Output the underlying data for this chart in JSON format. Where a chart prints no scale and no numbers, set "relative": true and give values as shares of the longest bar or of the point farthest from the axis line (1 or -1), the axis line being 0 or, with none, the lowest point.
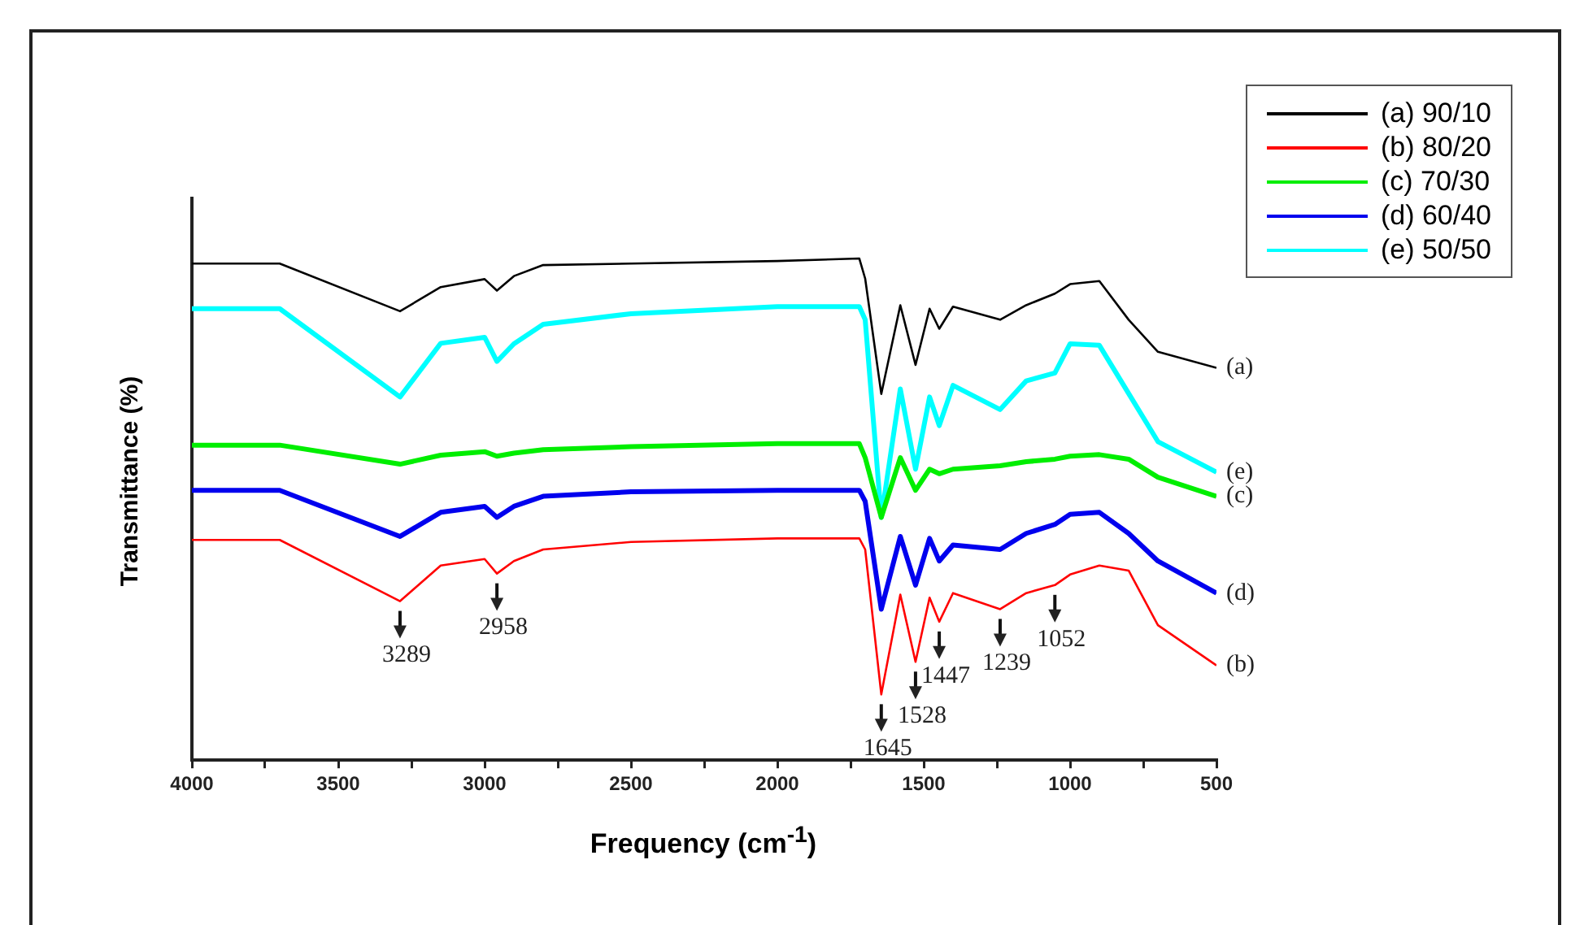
{
  "chart_data": {
    "type": "line",
    "relative": true,
    "xlabel": "Frequency (cm$^{-1}$)",
    "ylabel": "Transmittance (%)",
    "legend": "top right",
    "grid": false,
    "marker": "none",
    "line_style": "solid",
    "xlim": [
      4000,
      500
    ],
    "xticks": [
      4000,
      {
        "value": 3750,
        "label": null
      },
      3500,
      {
        "value": 3250,
        "label": null
      },
      3000,
      {
        "value": 2750,
        "label": null
      },
      2500,
      {
        "value": 2250,
        "label": null
      },
      2000,
      {
        "value": 1750,
        "label": null
      },
      1500,
      {
        "value": 1250,
        "label": null
      },
      1000,
      {
        "value": 750,
        "label": null
      },
      500
    ],
    "x": [
      4000,
      3700,
      3289,
      3150,
      3000,
      2958,
      2900,
      2800,
      2500,
      2000,
      1720,
      1700,
      1645,
      1580,
      1528,
      1480,
      1447,
      1400,
      1239,
      1150,
      1052,
      1000,
      900,
      800,
      700,
      500
    ],
    "series": [
      {
        "name": "(a) 90/10",
        "color": "#000000",
        "values": [
          0.99,
          0.99,
          0.895,
          0.943,
          0.959,
          0.936,
          0.965,
          0.987,
          0.99,
          0.995,
          1,
          0.96,
          0.73,
          0.907,
          0.788,
          0.9,
          0.86,
          0.904,
          0.878,
          0.907,
          0.93,
          0.949,
          0.955,
          0.878,
          0.814,
          0.782
        ]
      },
      {
        "name": "(b) 80/20",
        "color": "#ff0000",
        "values": [
          0.439,
          0.439,
          0.317,
          0.388,
          0.401,
          0.372,
          0.397,
          0.42,
          0.435,
          0.442,
          0.442,
          0.42,
          0.131,
          0.33,
          0.196,
          0.324,
          0.276,
          0.333,
          0.301,
          0.333,
          0.349,
          0.37,
          0.388,
          0.378,
          0.269,
          0.189
        ]
      },
      {
        "name": "(c) 70/30",
        "color": "#00ee00",
        "values": [
          0.628,
          0.628,
          0.59,
          0.608,
          0.615,
          0.606,
          0.612,
          0.619,
          0.625,
          0.631,
          0.631,
          0.603,
          0.484,
          0.603,
          0.538,
          0.58,
          0.571,
          0.58,
          0.587,
          0.595,
          0.6,
          0.606,
          0.609,
          0.6,
          0.564,
          0.526
        ]
      },
      {
        "name": "(d) 60/40",
        "color": "#0000ee",
        "values": [
          0.538,
          0.538,
          0.446,
          0.494,
          0.506,
          0.484,
          0.506,
          0.526,
          0.535,
          0.538,
          0.538,
          0.516,
          0.301,
          0.446,
          0.349,
          0.442,
          0.397,
          0.429,
          0.42,
          0.452,
          0.47,
          0.49,
          0.494,
          0.452,
          0.397,
          0.333
        ]
      },
      {
        "name": "(e) 50/50",
        "color": "#00ffff",
        "values": [
          0.9,
          0.9,
          0.724,
          0.831,
          0.843,
          0.795,
          0.83,
          0.869,
          0.89,
          0.904,
          0.904,
          0.878,
          0.484,
          0.74,
          0.58,
          0.724,
          0.667,
          0.747,
          0.699,
          0.756,
          0.772,
          0.83,
          0.827,
          0.731,
          0.635,
          0.574
        ]
      }
    ],
    "annotations": [
      {
        "text": "3289",
        "x": 3289,
        "y": 0.317
      },
      {
        "text": "2958",
        "x": 2958,
        "y": 0.372
      },
      {
        "text": "1645",
        "x": 1645,
        "y": 0.131
      },
      {
        "text": "1528",
        "x": 1528,
        "y": 0.196
      },
      {
        "text": "1447",
        "x": 1447,
        "y": 0.276
      },
      {
        "text": "1239",
        "x": 1239,
        "y": 0.301
      },
      {
        "text": "1052",
        "x": 1052,
        "y": 0.349
      },
      {
        "text": "(a)",
        "x": 500,
        "y": 0.782
      },
      {
        "text": "(e)",
        "x": 500,
        "y": 0.574
      },
      {
        "text": "(c)",
        "x": 500,
        "y": 0.526
      },
      {
        "text": "(d)",
        "x": 500,
        "y": 0.333
      },
      {
        "text": "(b)",
        "x": 500,
        "y": 0.189
      }
    ]
  }
}
